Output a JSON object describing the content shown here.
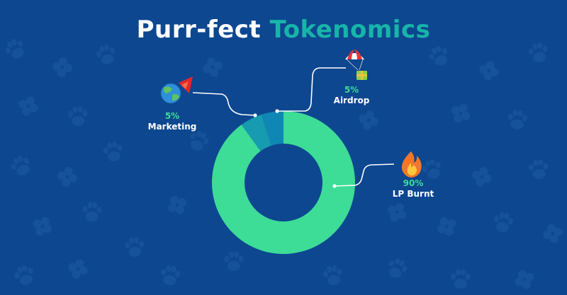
{
  "header": {
    "title_part1": "Purr-fect",
    "title_part2": "Tokenomics"
  },
  "colors": {
    "background": "#0d4790",
    "pattern": "#1a569e",
    "lp_burnt": "#3ddc97",
    "marketing": "#169bb0",
    "airdrop": "#0f87b5",
    "title_accent": "#17b5a8",
    "leader_line": "#ffffff"
  },
  "icons": {
    "marketing": "globe-rocket-icon",
    "airdrop": "parachute-gift-icon",
    "lp_burnt": "fire-icon",
    "background": "paw-clover-pattern"
  },
  "chart_data": {
    "type": "pie",
    "donut": true,
    "title": "Purr-fect Tokenomics",
    "categories": [
      "LP Burnt",
      "Marketing",
      "Airdrop"
    ],
    "values": [
      90,
      5,
      5
    ],
    "labels": [
      "90%",
      "5%",
      "5%"
    ]
  }
}
